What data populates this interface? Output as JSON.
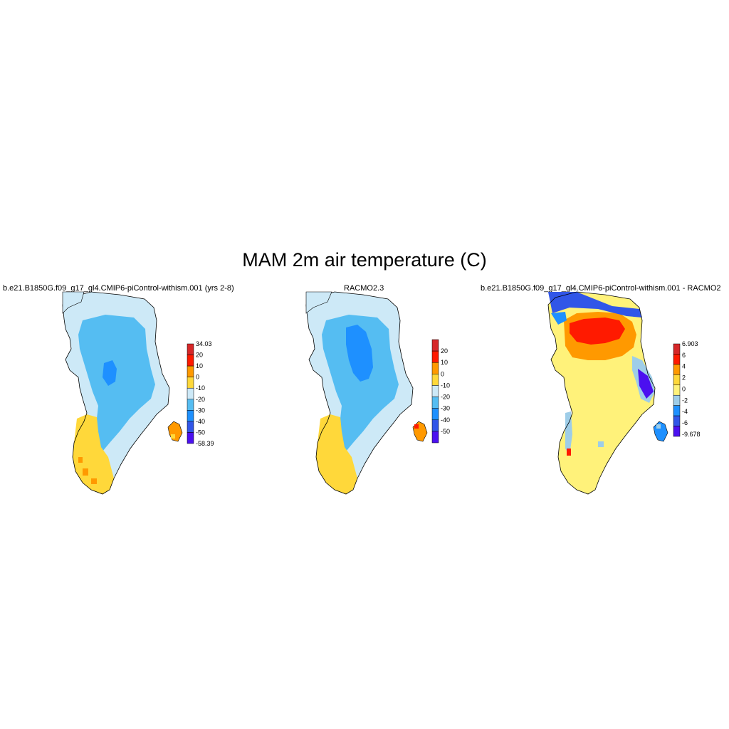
{
  "title": "MAM 2m air temperature (C)",
  "panels": [
    {
      "id": "model",
      "title": "b.e21.B1850G.f09_g17_gl4.CMIP6-piControl-withism.001 (yrs 2-8)",
      "colorbar": {
        "max_label": "34.03",
        "min_label": "-58.39",
        "labels": [
          "34.03",
          "20",
          "10",
          "0",
          "-10",
          "-20",
          "-30",
          "-40",
          "-50",
          "-58.39"
        ],
        "colors": [
          "#d62728",
          "#ff1a00",
          "#ff9900",
          "#ffd83a",
          "#cde9f7",
          "#55bdf2",
          "#1e90ff",
          "#3156e8",
          "#4b10f0"
        ]
      }
    },
    {
      "id": "obs",
      "title": "RACMO2.3",
      "colorbar": {
        "labels": [
          "20",
          "10",
          "0",
          "-10",
          "-20",
          "-30",
          "-40",
          "-50"
        ],
        "colors": [
          "#d62728",
          "#ff1a00",
          "#ff9900",
          "#ffd83a",
          "#cde9f7",
          "#55bdf2",
          "#1e90ff",
          "#3156e8",
          "#4b10f0"
        ]
      }
    },
    {
      "id": "diff",
      "title": "b.e21.B1850G.f09_g17_gl4.CMIP6-piControl-withism.001 - RACMO2",
      "colorbar": {
        "max_label": "6.903",
        "min_label": "-9.678",
        "labels": [
          "6.903",
          "6",
          "4",
          "2",
          "0",
          "-2",
          "-4",
          "-6",
          "-9.678"
        ],
        "colors": [
          "#d62728",
          "#ff1a00",
          "#ff9900",
          "#ffd83a",
          "#fff27a",
          "#9ecde8",
          "#1e90ff",
          "#3156e8",
          "#4b10f0"
        ]
      }
    }
  ]
}
